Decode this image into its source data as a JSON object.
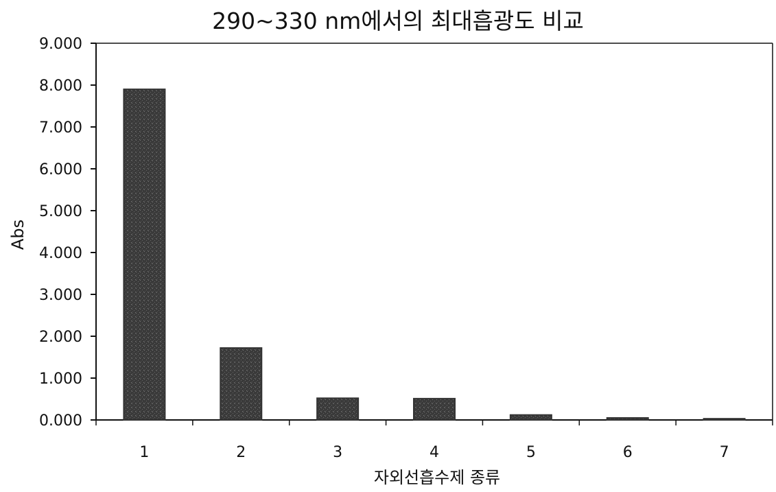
{
  "chart_data": {
    "type": "bar",
    "title": "290~330 nm에서의 최대흡광도 비교",
    "xlabel": "자외선흡수제 종류",
    "ylabel": "Abs",
    "categories": [
      "1",
      "2",
      "3",
      "4",
      "5",
      "6",
      "7"
    ],
    "values": [
      7.9,
      1.72,
      0.52,
      0.51,
      0.12,
      0.05,
      0.03
    ],
    "ylim": [
      0,
      9
    ],
    "yticks": [
      "0.000",
      "1.000",
      "2.000",
      "3.000",
      "4.000",
      "5.000",
      "6.000",
      "7.000",
      "8.000",
      "9.000"
    ],
    "grid": false,
    "legend": "none",
    "colors": {
      "bar": "#333333",
      "axis": "#111111"
    }
  }
}
